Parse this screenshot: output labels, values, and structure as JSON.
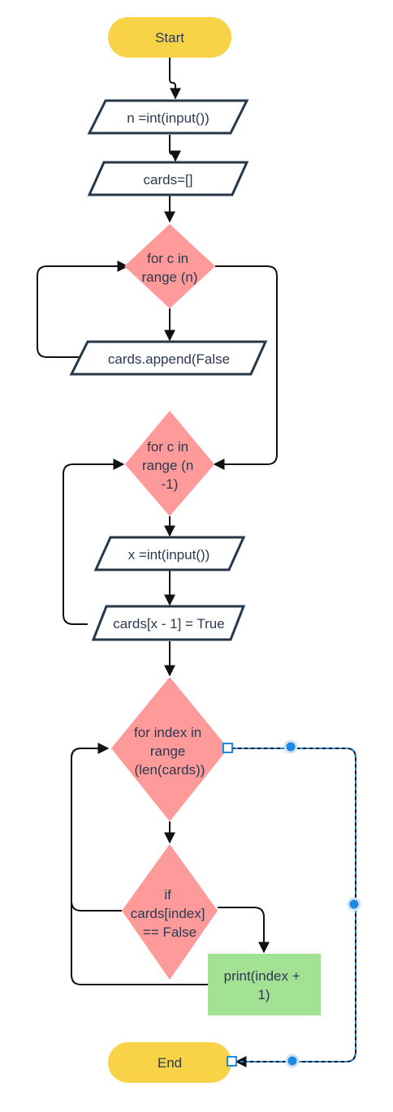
{
  "diagram": {
    "nodes": {
      "start": "Start",
      "input_n": "n =int(input())",
      "cards_init": "cards=[]",
      "loop1": [
        "for c in",
        "range (n)"
      ],
      "append": "cards.append(False",
      "loop2": [
        "for c in",
        "range (n",
        "-1)"
      ],
      "input_x": "x =int(input())",
      "set_true": "cards[x - 1] = True",
      "loop3": [
        "for index in",
        "range",
        "(len(cards))"
      ],
      "if_false": [
        "if",
        "cards[index]",
        "== False"
      ],
      "print": [
        "print(index +",
        "1)"
      ],
      "end": "End"
    },
    "colors": {
      "terminal": "#f8d247",
      "decision": "#ff9a9a",
      "process": "#a3e294",
      "io_border": "#26374a",
      "selection": "#1e88e5"
    }
  }
}
